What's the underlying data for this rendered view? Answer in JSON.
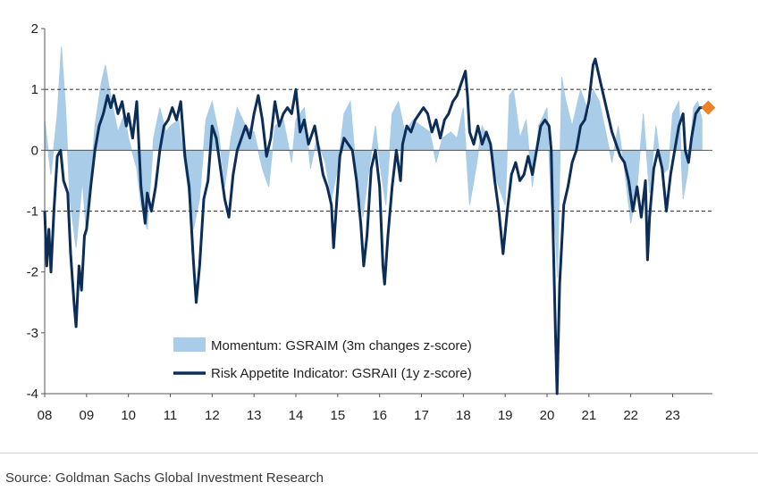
{
  "chart_data": {
    "type": "area",
    "title": "",
    "xlabel": "",
    "ylabel": "",
    "x_tick_labels": [
      "08",
      "09",
      "10",
      "11",
      "12",
      "13",
      "14",
      "15",
      "16",
      "17",
      "18",
      "19",
      "20",
      "21",
      "22",
      "23"
    ],
    "y_tick_labels": [
      "2",
      "1",
      "0",
      "-1",
      "-2",
      "-3",
      "-4"
    ],
    "ylim": [
      -4,
      2
    ],
    "xlim": [
      2008.0,
      2023.95
    ],
    "grid": false,
    "reference_lines": [
      1,
      -1
    ],
    "legend_position": "bottom-center",
    "colors": {
      "momentum": "#a9cce8",
      "risk_appetite": "#0c2d57",
      "latest_marker": "#ee8026",
      "axis": "#555555",
      "ref_line": "#444444"
    },
    "series": [
      {
        "name": "Momentum: GSRAIM (3m changes z-score)",
        "type": "area",
        "points": [
          [
            2008.0,
            0.5
          ],
          [
            2008.15,
            -0.4
          ],
          [
            2008.3,
            0.6
          ],
          [
            2008.4,
            1.7
          ],
          [
            2008.5,
            0.7
          ],
          [
            2008.6,
            -0.8
          ],
          [
            2008.75,
            -1.6
          ],
          [
            2008.9,
            -0.5
          ],
          [
            2009.0,
            -1.4
          ],
          [
            2009.2,
            0.4
          ],
          [
            2009.35,
            1.1
          ],
          [
            2009.45,
            1.4
          ],
          [
            2009.6,
            0.8
          ],
          [
            2009.75,
            0.3
          ],
          [
            2009.9,
            0.6
          ],
          [
            2010.0,
            0.2
          ],
          [
            2010.2,
            -0.3
          ],
          [
            2010.3,
            -0.9
          ],
          [
            2010.45,
            -1.3
          ],
          [
            2010.6,
            0.2
          ],
          [
            2010.75,
            0.7
          ],
          [
            2010.9,
            0.3
          ],
          [
            2011.0,
            0.4
          ],
          [
            2011.2,
            0.5
          ],
          [
            2011.4,
            -0.5
          ],
          [
            2011.55,
            -1.3
          ],
          [
            2011.7,
            -0.8
          ],
          [
            2011.85,
            0.5
          ],
          [
            2012.0,
            0.8
          ],
          [
            2012.15,
            0.3
          ],
          [
            2012.3,
            -0.6
          ],
          [
            2012.45,
            0.2
          ],
          [
            2012.6,
            0.7
          ],
          [
            2012.8,
            0.4
          ],
          [
            2013.0,
            0.3
          ],
          [
            2013.2,
            -0.3
          ],
          [
            2013.35,
            -0.6
          ],
          [
            2013.5,
            0.4
          ],
          [
            2013.7,
            0.5
          ],
          [
            2013.9,
            -0.2
          ],
          [
            2014.0,
            0.5
          ],
          [
            2014.2,
            0.7
          ],
          [
            2014.35,
            -0.3
          ],
          [
            2014.5,
            0.2
          ],
          [
            2014.7,
            -0.2
          ],
          [
            2014.85,
            -0.8
          ],
          [
            2015.0,
            -0.3
          ],
          [
            2015.15,
            0.6
          ],
          [
            2015.3,
            0.8
          ],
          [
            2015.45,
            -0.4
          ],
          [
            2015.6,
            -1.1
          ],
          [
            2015.75,
            -0.3
          ],
          [
            2015.9,
            0.4
          ],
          [
            2016.0,
            -0.2
          ],
          [
            2016.15,
            -0.9
          ],
          [
            2016.3,
            0.6
          ],
          [
            2016.45,
            0.8
          ],
          [
            2016.6,
            0.3
          ],
          [
            2016.8,
            0.5
          ],
          [
            2017.0,
            0.4
          ],
          [
            2017.2,
            0.3
          ],
          [
            2017.35,
            -0.2
          ],
          [
            2017.5,
            0.2
          ],
          [
            2017.7,
            0.3
          ],
          [
            2017.85,
            0.2
          ],
          [
            2018.0,
            0.7
          ],
          [
            2018.15,
            -0.9
          ],
          [
            2018.3,
            -0.3
          ],
          [
            2018.45,
            0.4
          ],
          [
            2018.6,
            0.2
          ],
          [
            2018.8,
            -0.5
          ],
          [
            2019.0,
            -0.9
          ],
          [
            2019.1,
            0.9
          ],
          [
            2019.2,
            1.0
          ],
          [
            2019.35,
            0.2
          ],
          [
            2019.5,
            0.5
          ],
          [
            2019.65,
            -0.6
          ],
          [
            2019.8,
            0.4
          ],
          [
            2020.0,
            0.7
          ],
          [
            2020.1,
            -0.9
          ],
          [
            2020.2,
            -1.4
          ],
          [
            2020.25,
            -2.1
          ],
          [
            2020.35,
            1.2
          ],
          [
            2020.45,
            0.8
          ],
          [
            2020.6,
            0.4
          ],
          [
            2020.8,
            1.0
          ],
          [
            2021.0,
            0.6
          ],
          [
            2021.1,
            1.0
          ],
          [
            2021.25,
            0.8
          ],
          [
            2021.4,
            0.3
          ],
          [
            2021.55,
            -0.2
          ],
          [
            2021.7,
            0.4
          ],
          [
            2021.85,
            -0.3
          ],
          [
            2022.0,
            -1.2
          ],
          [
            2022.15,
            -0.6
          ],
          [
            2022.3,
            0.6
          ],
          [
            2022.45,
            -0.7
          ],
          [
            2022.6,
            0.4
          ],
          [
            2022.75,
            -0.4
          ],
          [
            2022.9,
            -0.3
          ],
          [
            2023.0,
            0.6
          ],
          [
            2023.15,
            0.8
          ],
          [
            2023.25,
            -0.8
          ],
          [
            2023.35,
            -0.4
          ],
          [
            2023.5,
            0.7
          ],
          [
            2023.6,
            0.8
          ],
          [
            2023.7,
            0.5
          ]
        ]
      },
      {
        "name": "Risk Appetite Indicator: GSRAII (1y z-score)",
        "type": "line",
        "points": [
          [
            2008.0,
            -1.0
          ],
          [
            2008.05,
            -1.9
          ],
          [
            2008.1,
            -1.3
          ],
          [
            2008.15,
            -2.0
          ],
          [
            2008.22,
            -1.0
          ],
          [
            2008.3,
            -0.1
          ],
          [
            2008.38,
            0.0
          ],
          [
            2008.45,
            -0.5
          ],
          [
            2008.55,
            -0.7
          ],
          [
            2008.62,
            -1.7
          ],
          [
            2008.7,
            -2.5
          ],
          [
            2008.75,
            -2.9
          ],
          [
            2008.82,
            -1.9
          ],
          [
            2008.88,
            -2.3
          ],
          [
            2008.95,
            -1.4
          ],
          [
            2009.0,
            -1.3
          ],
          [
            2009.1,
            -0.6
          ],
          [
            2009.2,
            0.0
          ],
          [
            2009.3,
            0.4
          ],
          [
            2009.4,
            0.6
          ],
          [
            2009.5,
            0.9
          ],
          [
            2009.58,
            0.7
          ],
          [
            2009.65,
            0.9
          ],
          [
            2009.75,
            0.6
          ],
          [
            2009.85,
            0.8
          ],
          [
            2009.95,
            0.4
          ],
          [
            2010.0,
            0.6
          ],
          [
            2010.1,
            0.2
          ],
          [
            2010.2,
            0.8
          ],
          [
            2010.3,
            -0.6
          ],
          [
            2010.4,
            -1.2
          ],
          [
            2010.45,
            -0.7
          ],
          [
            2010.55,
            -1.0
          ],
          [
            2010.65,
            -0.6
          ],
          [
            2010.75,
            0.0
          ],
          [
            2010.85,
            0.4
          ],
          [
            2010.95,
            0.5
          ],
          [
            2011.05,
            0.7
          ],
          [
            2011.15,
            0.5
          ],
          [
            2011.25,
            0.8
          ],
          [
            2011.35,
            -0.1
          ],
          [
            2011.45,
            -0.6
          ],
          [
            2011.55,
            -1.8
          ],
          [
            2011.62,
            -2.5
          ],
          [
            2011.7,
            -1.9
          ],
          [
            2011.8,
            -0.8
          ],
          [
            2011.9,
            -0.5
          ],
          [
            2012.0,
            0.4
          ],
          [
            2012.1,
            0.2
          ],
          [
            2012.2,
            -0.3
          ],
          [
            2012.3,
            -0.8
          ],
          [
            2012.4,
            -1.1
          ],
          [
            2012.5,
            -0.4
          ],
          [
            2012.6,
            0.0
          ],
          [
            2012.7,
            0.2
          ],
          [
            2012.8,
            0.4
          ],
          [
            2012.9,
            0.2
          ],
          [
            2013.0,
            0.6
          ],
          [
            2013.1,
            0.9
          ],
          [
            2013.2,
            0.5
          ],
          [
            2013.3,
            -0.1
          ],
          [
            2013.4,
            0.2
          ],
          [
            2013.5,
            0.8
          ],
          [
            2013.6,
            0.4
          ],
          [
            2013.7,
            0.6
          ],
          [
            2013.8,
            0.7
          ],
          [
            2013.9,
            0.6
          ],
          [
            2014.0,
            1.0
          ],
          [
            2014.1,
            0.3
          ],
          [
            2014.2,
            0.5
          ],
          [
            2014.3,
            0.1
          ],
          [
            2014.45,
            0.4
          ],
          [
            2014.55,
            0.0
          ],
          [
            2014.65,
            -0.4
          ],
          [
            2014.75,
            -0.6
          ],
          [
            2014.85,
            -0.9
          ],
          [
            2014.9,
            -1.6
          ],
          [
            2014.95,
            -1.1
          ],
          [
            2015.05,
            -0.1
          ],
          [
            2015.15,
            0.2
          ],
          [
            2015.25,
            0.1
          ],
          [
            2015.35,
            0.0
          ],
          [
            2015.45,
            -0.5
          ],
          [
            2015.55,
            -1.2
          ],
          [
            2015.62,
            -1.9
          ],
          [
            2015.7,
            -1.4
          ],
          [
            2015.8,
            -0.3
          ],
          [
            2015.9,
            0.0
          ],
          [
            2016.0,
            -0.6
          ],
          [
            2016.08,
            -1.9
          ],
          [
            2016.12,
            -2.2
          ],
          [
            2016.2,
            -1.4
          ],
          [
            2016.3,
            -0.6
          ],
          [
            2016.4,
            0.0
          ],
          [
            2016.5,
            -0.5
          ],
          [
            2016.55,
            0.1
          ],
          [
            2016.65,
            0.4
          ],
          [
            2016.75,
            0.3
          ],
          [
            2016.85,
            0.5
          ],
          [
            2016.95,
            0.6
          ],
          [
            2017.05,
            0.7
          ],
          [
            2017.15,
            0.6
          ],
          [
            2017.25,
            0.3
          ],
          [
            2017.35,
            0.5
          ],
          [
            2017.45,
            0.2
          ],
          [
            2017.55,
            0.5
          ],
          [
            2017.65,
            0.6
          ],
          [
            2017.75,
            0.8
          ],
          [
            2017.85,
            0.9
          ],
          [
            2017.95,
            1.1
          ],
          [
            2018.05,
            1.3
          ],
          [
            2018.1,
            0.9
          ],
          [
            2018.15,
            0.3
          ],
          [
            2018.25,
            0.1
          ],
          [
            2018.35,
            0.4
          ],
          [
            2018.45,
            0.1
          ],
          [
            2018.55,
            0.3
          ],
          [
            2018.65,
            0.1
          ],
          [
            2018.75,
            -0.5
          ],
          [
            2018.85,
            -1.0
          ],
          [
            2018.95,
            -1.7
          ],
          [
            2019.05,
            -1.0
          ],
          [
            2019.15,
            -0.4
          ],
          [
            2019.25,
            -0.2
          ],
          [
            2019.35,
            -0.5
          ],
          [
            2019.45,
            -0.4
          ],
          [
            2019.55,
            -0.1
          ],
          [
            2019.65,
            -0.4
          ],
          [
            2019.75,
            0.0
          ],
          [
            2019.85,
            0.4
          ],
          [
            2019.95,
            0.5
          ],
          [
            2020.05,
            0.4
          ],
          [
            2020.1,
            0.0
          ],
          [
            2020.15,
            -1.5
          ],
          [
            2020.2,
            -3.0
          ],
          [
            2020.24,
            -4.0
          ],
          [
            2020.3,
            -2.2
          ],
          [
            2020.4,
            -0.9
          ],
          [
            2020.5,
            -0.6
          ],
          [
            2020.6,
            -0.2
          ],
          [
            2020.7,
            0.0
          ],
          [
            2020.8,
            0.4
          ],
          [
            2020.9,
            0.5
          ],
          [
            2021.0,
            0.8
          ],
          [
            2021.1,
            1.4
          ],
          [
            2021.15,
            1.5
          ],
          [
            2021.25,
            1.2
          ],
          [
            2021.35,
            0.9
          ],
          [
            2021.45,
            0.6
          ],
          [
            2021.55,
            0.3
          ],
          [
            2021.65,
            0.1
          ],
          [
            2021.75,
            -0.1
          ],
          [
            2021.85,
            -0.2
          ],
          [
            2021.95,
            -0.5
          ],
          [
            2022.05,
            -1.0
          ],
          [
            2022.15,
            -0.6
          ],
          [
            2022.25,
            -1.1
          ],
          [
            2022.35,
            -0.5
          ],
          [
            2022.4,
            -1.8
          ],
          [
            2022.45,
            -1.1
          ],
          [
            2022.55,
            -0.3
          ],
          [
            2022.65,
            0.0
          ],
          [
            2022.75,
            -0.3
          ],
          [
            2022.85,
            -1.0
          ],
          [
            2022.95,
            -0.4
          ],
          [
            2023.05,
            0.0
          ],
          [
            2023.15,
            0.4
          ],
          [
            2023.25,
            0.6
          ],
          [
            2023.3,
            0.0
          ],
          [
            2023.38,
            -0.2
          ],
          [
            2023.45,
            0.2
          ],
          [
            2023.55,
            0.6
          ],
          [
            2023.65,
            0.7
          ],
          [
            2023.75,
            0.7
          ]
        ]
      }
    ],
    "latest_point": {
      "x": 2023.85,
      "y": 0.7
    }
  },
  "source": "Source: Goldman Sachs Global Investment Research"
}
